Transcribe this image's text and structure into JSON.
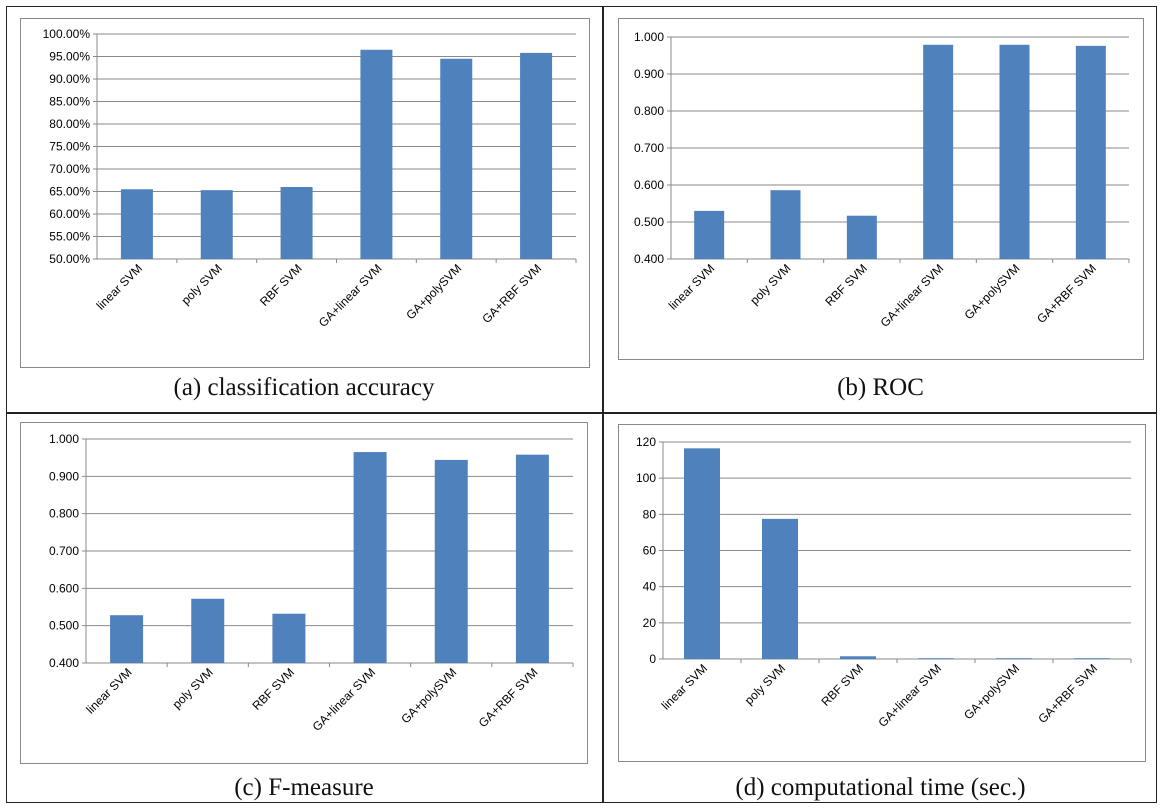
{
  "colors": {
    "bar": "#4F81BD",
    "grid": "#8a8a8a",
    "axis": "#8a8a8a",
    "text": "#000000"
  },
  "captions": {
    "a": "(a) classification accuracy",
    "b": "(b) ROC",
    "c": "(c) F-measure",
    "d": "(d) computational time (sec.)"
  },
  "chart_data": [
    {
      "id": "a",
      "type": "bar",
      "title": "",
      "categories": [
        "linear SVM",
        "poly SVM",
        "RBF SVM",
        "GA+linear SVM",
        "GA+polySVM",
        "GA+RBF SVM"
      ],
      "values": [
        0.655,
        0.653,
        0.66,
        0.965,
        0.945,
        0.958
      ],
      "ylim": [
        0.5,
        1.0
      ],
      "yticks": [
        0.5,
        0.55,
        0.6,
        0.65,
        0.7,
        0.75,
        0.8,
        0.85,
        0.9,
        0.95,
        1.0
      ],
      "ytick_labels": [
        "50.00%",
        "55.00%",
        "60.00%",
        "65.00%",
        "70.00%",
        "75.00%",
        "80.00%",
        "85.00%",
        "90.00%",
        "95.00%",
        "100.00%"
      ],
      "grid": true,
      "legend": "none"
    },
    {
      "id": "b",
      "type": "bar",
      "title": "",
      "categories": [
        "linear SVM",
        "poly SVM",
        "RBF SVM",
        "GA+linear SVM",
        "GA+polySVM",
        "GA+RBF SVM"
      ],
      "values": [
        0.53,
        0.586,
        0.517,
        0.979,
        0.979,
        0.976
      ],
      "ylim": [
        0.4,
        1.0
      ],
      "yticks": [
        0.4,
        0.5,
        0.6,
        0.7,
        0.8,
        0.9,
        1.0
      ],
      "ytick_labels": [
        "0.400",
        "0.500",
        "0.600",
        "0.700",
        "0.800",
        "0.900",
        "1.000"
      ],
      "grid": true,
      "legend": "none"
    },
    {
      "id": "c",
      "type": "bar",
      "title": "",
      "categories": [
        "linear SVM",
        "poly SVM",
        "RBF SVM",
        "GA+linear SVM",
        "GA+polySVM",
        "GA+RBF SVM"
      ],
      "values": [
        0.528,
        0.572,
        0.532,
        0.965,
        0.944,
        0.958
      ],
      "ylim": [
        0.4,
        1.0
      ],
      "yticks": [
        0.4,
        0.5,
        0.6,
        0.7,
        0.8,
        0.9,
        1.0
      ],
      "ytick_labels": [
        "0.400",
        "0.500",
        "0.600",
        "0.700",
        "0.800",
        "0.900",
        "1.000"
      ],
      "grid": true,
      "legend": "none"
    },
    {
      "id": "d",
      "type": "bar",
      "title": "",
      "categories": [
        "linear SVM",
        "poly SVM",
        "RBF SVM",
        "GA+linear SVM",
        "GA+polySVM",
        "GA+RBF SVM"
      ],
      "values": [
        116.5,
        77.5,
        1.5,
        0.4,
        0.4,
        0.4
      ],
      "ylim": [
        0,
        120
      ],
      "yticks": [
        0,
        20,
        40,
        60,
        80,
        100,
        120
      ],
      "ytick_labels": [
        "0",
        "20",
        "40",
        "60",
        "80",
        "100",
        "120"
      ],
      "grid": true,
      "legend": "none"
    }
  ]
}
